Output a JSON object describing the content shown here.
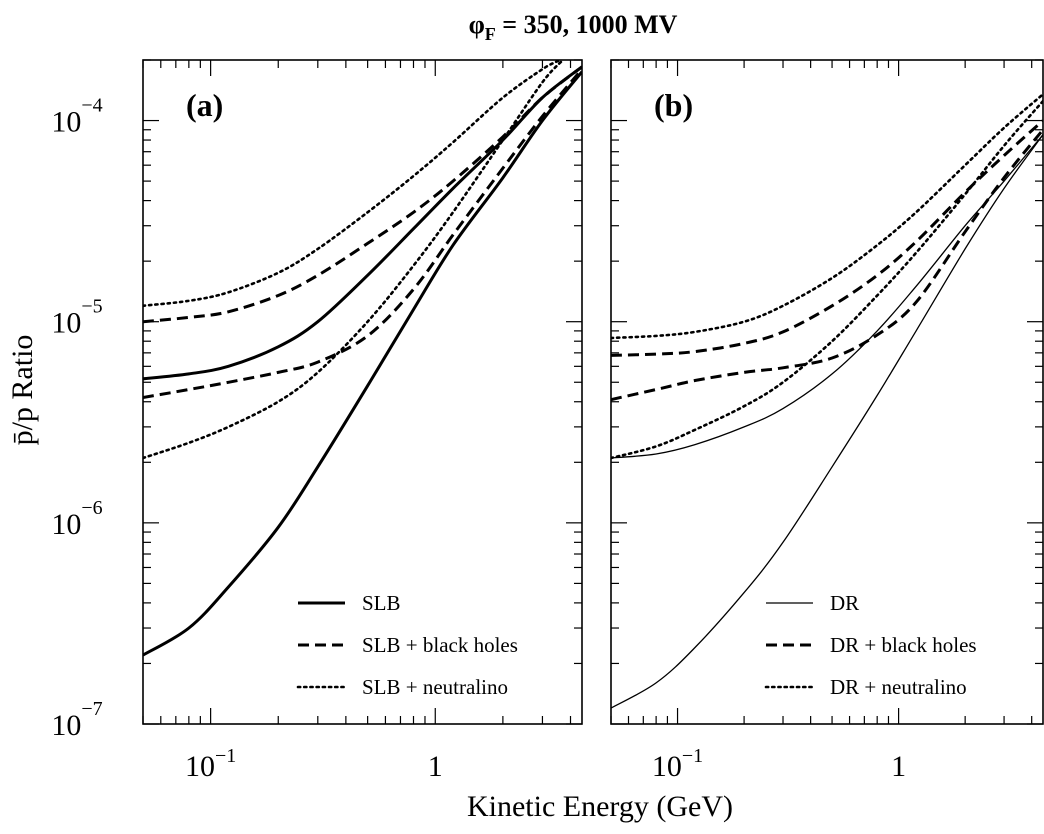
{
  "chart_data": {
    "type": "line",
    "title": "φF = 350, 1000 MV",
    "title_main": "φ",
    "title_sub": "F",
    "title_rest": " = 350, 1000 MV",
    "xlabel": "Kinetic Energy (GeV)",
    "ylabel": "p̄/p Ratio",
    "x_scale": "log",
    "y_scale": "log",
    "xlim": [
      0.05,
      4.5
    ],
    "ylim": [
      1e-07,
      0.0002
    ],
    "x_ticks": [
      {
        "value": 0.1,
        "base": "10",
        "exp": "−1"
      },
      {
        "value": 1,
        "base": "1",
        "exp": ""
      }
    ],
    "y_ticks": [
      {
        "value": 1e-07,
        "base": "10",
        "exp": "−7"
      },
      {
        "value": 1e-06,
        "base": "10",
        "exp": "−6"
      },
      {
        "value": 1e-05,
        "base": "10",
        "exp": "−5"
      },
      {
        "value": 0.0001,
        "base": "10",
        "exp": "−4"
      }
    ],
    "panels": [
      {
        "label": "(a)",
        "legend": [
          {
            "label": "SLB",
            "style": "solid-thick"
          },
          {
            "label": "SLB + black holes",
            "style": "dashed"
          },
          {
            "label": "SLB + neutralino",
            "style": "dotted"
          }
        ],
        "series": [
          {
            "style": "solid-thick",
            "x": [
              0.05,
              0.08,
              0.12,
              0.2,
              0.3,
              0.5,
              0.8,
              1.2,
              2,
              3,
              4.5
            ],
            "y": [
              5.2e-06,
              5.5e-06,
              6e-06,
              7.5e-06,
              1e-05,
              1.7e-05,
              2.9e-05,
              4.6e-05,
              8e-05,
              0.00013,
              0.000185
            ]
          },
          {
            "style": "solid-thick",
            "x": [
              0.05,
              0.08,
              0.12,
              0.2,
              0.3,
              0.5,
              0.8,
              1.2,
              2,
              3,
              4.5
            ],
            "y": [
              2.2e-07,
              3e-07,
              4.8e-07,
              9.5e-07,
              1.9e-06,
              4.8e-06,
              1.15e-05,
              2.4e-05,
              5.2e-05,
              0.0001,
              0.000175
            ]
          },
          {
            "style": "dashed",
            "x": [
              0.05,
              0.08,
              0.12,
              0.2,
              0.3,
              0.5,
              0.8,
              1.2,
              2,
              3,
              4.5
            ],
            "y": [
              1e-05,
              1.05e-05,
              1.12e-05,
              1.35e-05,
              1.7e-05,
              2.45e-05,
              3.5e-05,
              5e-05,
              8.3e-05,
              0.00013,
              0.000185
            ]
          },
          {
            "style": "dashed",
            "x": [
              0.05,
              0.08,
              0.12,
              0.2,
              0.3,
              0.5,
              0.8,
              1.2,
              2,
              3,
              4.5
            ],
            "y": [
              4.2e-06,
              4.6e-06,
              5e-06,
              5.6e-06,
              6.3e-06,
              8.5e-06,
              1.45e-05,
              2.7e-05,
              5.8e-05,
              0.000105,
              0.00018
            ]
          },
          {
            "style": "dotted",
            "x": [
              0.05,
              0.08,
              0.12,
              0.2,
              0.3,
              0.5,
              0.8,
              1.2,
              2,
              3,
              3.6
            ],
            "y": [
              1.2e-05,
              1.27e-05,
              1.4e-05,
              1.75e-05,
              2.3e-05,
              3.5e-05,
              5.3e-05,
              7.8e-05,
              0.00013,
              0.00018,
              0.0002
            ]
          },
          {
            "style": "dotted",
            "x": [
              0.05,
              0.08,
              0.12,
              0.2,
              0.3,
              0.5,
              0.8,
              1.2,
              2,
              3,
              3.7
            ],
            "y": [
              2.1e-06,
              2.5e-06,
              3e-06,
              4e-06,
              5.6e-06,
              1e-05,
              1.9e-05,
              3.5e-05,
              8e-05,
              0.000155,
              0.0002
            ]
          }
        ]
      },
      {
        "label": "(b)",
        "legend": [
          {
            "label": "DR",
            "style": "solid-thin"
          },
          {
            "label": "DR + black holes",
            "style": "dashed"
          },
          {
            "label": "DR + neutralino",
            "style": "dotted"
          }
        ],
        "series": [
          {
            "style": "solid-thin",
            "x": [
              0.05,
              0.08,
              0.12,
              0.2,
              0.3,
              0.5,
              0.8,
              1.2,
              2,
              3,
              4.5
            ],
            "y": [
              2.1e-06,
              2.2e-06,
              2.45e-06,
              3e-06,
              3.7e-06,
              5.5e-06,
              9e-06,
              1.5e-05,
              3e-05,
              5e-05,
              8.5e-05
            ]
          },
          {
            "style": "solid-thin",
            "x": [
              0.05,
              0.08,
              0.12,
              0.2,
              0.3,
              0.5,
              0.8,
              1.2,
              2,
              3,
              4.5
            ],
            "y": [
              1.2e-07,
              1.6e-07,
              2.4e-07,
              4.5e-07,
              8e-07,
              1.9e-06,
              4.3e-06,
              9e-06,
              2.3e-05,
              4.6e-05,
              8.5e-05
            ]
          },
          {
            "style": "dashed",
            "x": [
              0.05,
              0.08,
              0.12,
              0.2,
              0.3,
              0.5,
              0.8,
              1.2,
              2,
              3,
              4.5
            ],
            "y": [
              6.8e-06,
              6.9e-06,
              7.1e-06,
              7.8e-06,
              8.9e-06,
              1.2e-05,
              1.7e-05,
              2.5e-05,
              4.4e-05,
              6.7e-05,
              0.0001
            ]
          },
          {
            "style": "dashed",
            "x": [
              0.05,
              0.08,
              0.12,
              0.2,
              0.3,
              0.5,
              0.8,
              1.2,
              2,
              3,
              4.5
            ],
            "y": [
              4.1e-06,
              4.6e-06,
              5.1e-06,
              5.6e-06,
              5.9e-06,
              6.6e-06,
              8.6e-06,
              1.25e-05,
              2.8e-05,
              5.2e-05,
              9e-05
            ]
          },
          {
            "style": "dotted",
            "x": [
              0.05,
              0.08,
              0.12,
              0.2,
              0.3,
              0.5,
              0.8,
              1.2,
              2,
              3,
              4.5
            ],
            "y": [
              8.3e-06,
              8.5e-06,
              8.9e-06,
              1e-05,
              1.2e-05,
              1.65e-05,
              2.4e-05,
              3.5e-05,
              6e-05,
              9.2e-05,
              0.000135
            ]
          },
          {
            "style": "dotted",
            "x": [
              0.05,
              0.08,
              0.12,
              0.2,
              0.3,
              0.5,
              0.8,
              1.2,
              2,
              3,
              4.5
            ],
            "y": [
              2.1e-06,
              2.4e-06,
              2.9e-06,
              3.8e-06,
              5e-06,
              8e-06,
              1.35e-05,
              2.2e-05,
              4.3e-05,
              7.5e-05,
              0.000125
            ]
          }
        ]
      }
    ]
  }
}
